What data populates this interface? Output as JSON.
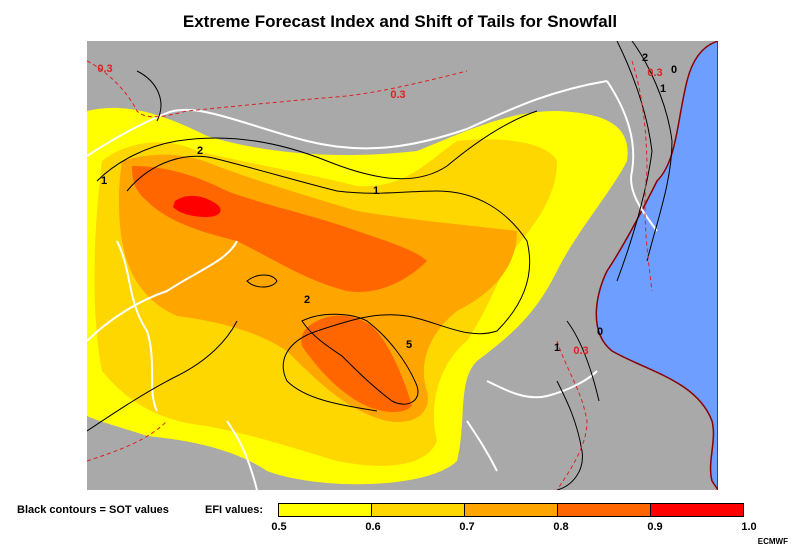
{
  "title": "Extreme Forecast Index and Shift of Tails for Snowfall",
  "legend": {
    "sot_note": "Black contours = SOT values",
    "efi_label": "EFI values:",
    "bins": [
      {
        "from": 0.5,
        "to": 0.6,
        "color": "#ffff00"
      },
      {
        "from": 0.6,
        "to": 0.7,
        "color": "#ffd700"
      },
      {
        "from": 0.7,
        "to": 0.8,
        "color": "#ffa500"
      },
      {
        "from": 0.8,
        "to": 0.9,
        "color": "#ff6600"
      },
      {
        "from": 0.9,
        "to": 1.0,
        "color": "#ff0000"
      }
    ],
    "ticks": [
      "0.5",
      "0.6",
      "0.7",
      "0.8",
      "0.9",
      "1.0"
    ]
  },
  "credit": "ECMWF",
  "map": {
    "background_color": "#a9a9a9",
    "water_color": "#6e9eff",
    "coastline_color": "#8b0000",
    "sot_contour_labels": [
      "2",
      "1",
      "1",
      "2",
      "5",
      "1",
      "0",
      "2",
      "1",
      "0"
    ],
    "efi_dashed_labels": [
      "0.3",
      "0.3",
      "0.3",
      "0.3"
    ]
  }
}
